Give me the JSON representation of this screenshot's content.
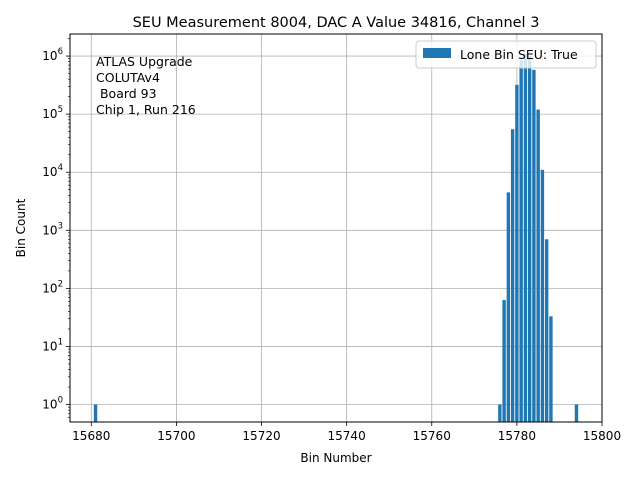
{
  "chart_data": {
    "type": "bar",
    "title": "SEU Measurement 8004, DAC A Value 34816, Channel 3",
    "xlabel": "Bin Number",
    "ylabel": "Bin Count",
    "yscale": "log",
    "xlim": [
      15675,
      15800
    ],
    "ylim": [
      0.5,
      2400000
    ],
    "grid": true,
    "legend_position": "top-right",
    "xticks": [
      "15680",
      "15700",
      "15720",
      "15740",
      "15760",
      "15780",
      "15800"
    ],
    "ytick_exponents": [
      "0",
      "1",
      "2",
      "3",
      "4",
      "5",
      "6"
    ],
    "annotation_lines": [
      "ATLAS Upgrade",
      "COLUTAv4",
      " Board 93",
      "Chip 1, Run 216"
    ],
    "series": [
      {
        "name": "Lone Bin SEU: True",
        "color": "#1f77b4",
        "x": [
          15681,
          15776,
          15777,
          15778,
          15779,
          15780,
          15781,
          15782,
          15783,
          15784,
          15785,
          15786,
          15787,
          15788,
          15794
        ],
        "values": [
          1,
          1,
          63,
          4500,
          55000,
          320000,
          850000,
          1100000,
          1000000,
          580000,
          120000,
          11000,
          700,
          33,
          1
        ]
      }
    ]
  }
}
